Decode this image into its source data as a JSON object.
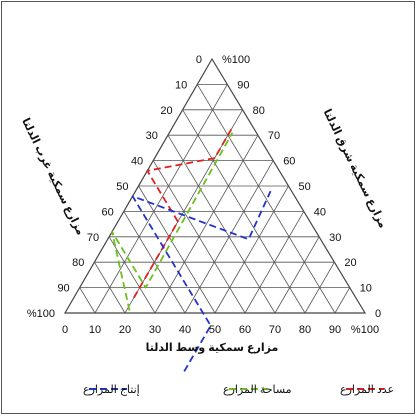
{
  "chart_data": {
    "type": "ternary",
    "axis_labels": {
      "bottom": "مزارع سمكية وسط الدلتا",
      "left": "مزارع سمكية غرب الدلتا",
      "right": "مزارع سمكية شرق الدلتا"
    },
    "bottom_ticks": [
      "0",
      "10",
      "20",
      "30",
      "40",
      "50",
      "60",
      "70",
      "80",
      "90",
      "%100"
    ],
    "left_ticks": [
      "%100",
      "90",
      "80",
      "70",
      "60",
      "50",
      "40",
      "30",
      "20",
      "10",
      "0"
    ],
    "right_ticks": [
      "%100",
      "90",
      "80",
      "70",
      "60",
      "50",
      "40",
      "30",
      "20",
      "10",
      "0"
    ],
    "series": [
      {
        "name": "عدد المزارع",
        "color": "#e02020",
        "points": [
          {
            "west": 74,
            "central": 20,
            "east": 6
          },
          {
            "west": 44,
            "central": 20,
            "east": 36
          },
          {
            "west": 44,
            "central": 0,
            "east": 56
          },
          {
            "west": 19,
            "central": 20,
            "east": 61
          },
          {
            "west": 7,
            "central": 20,
            "east": 73
          }
        ]
      },
      {
        "name": "مساحة المزارع",
        "color": "#6bc01e",
        "points": [
          {
            "west": 78,
            "central": 21,
            "east": 1
          },
          {
            "west": 68,
            "central": 0,
            "east": 32
          },
          {
            "west": 68,
            "central": 22,
            "east": 10
          },
          {
            "west": 8,
            "central": 21,
            "east": 71
          }
        ]
      },
      {
        "name": "إنتاج المزارع",
        "color": "#2233cc",
        "points": [
          {
            "west": 72,
            "central": 51,
            "east": -23
          },
          {
            "west": 54,
            "central": 51,
            "east": -5
          },
          {
            "west": 54,
            "central": 0,
            "east": 46
          },
          {
            "west": 24,
            "central": 47,
            "east": 29
          },
          {
            "west": 7,
            "central": 45,
            "east": 48
          }
        ]
      }
    ],
    "legend_position": "bottom"
  }
}
